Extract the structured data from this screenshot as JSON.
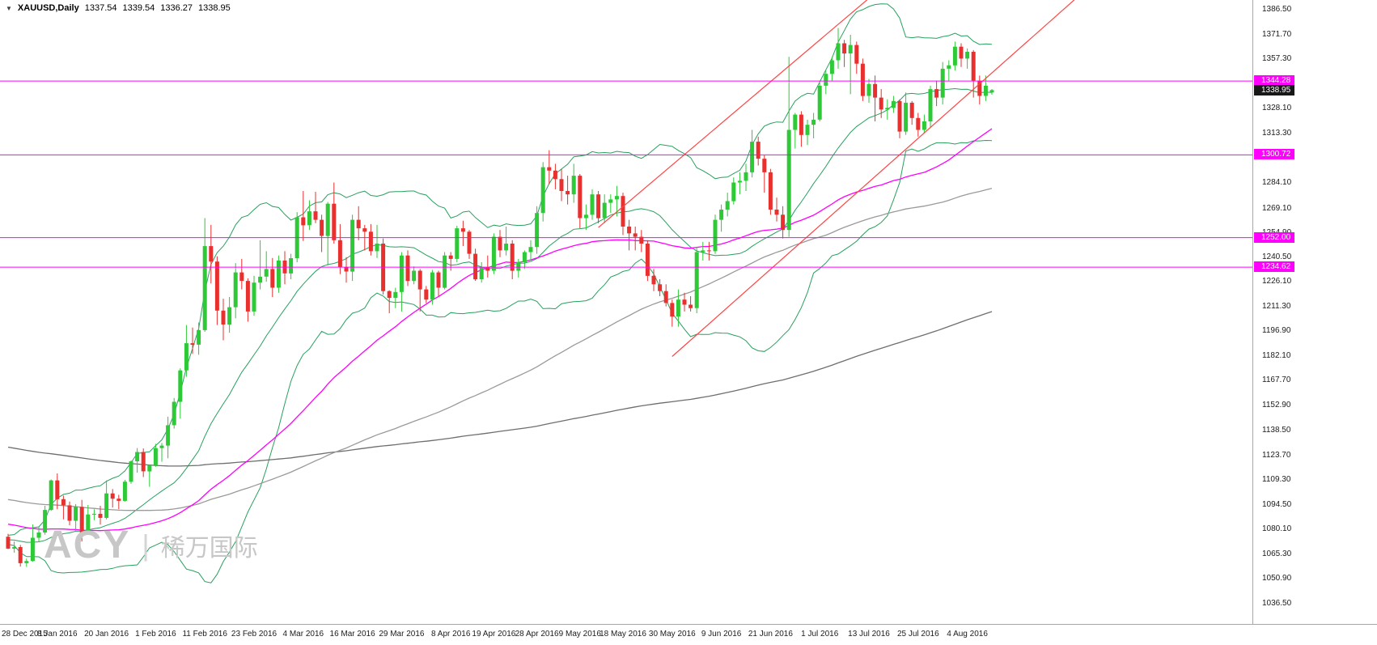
{
  "header": {
    "collapse_icon": "▼",
    "symbol": "XAUUSD,Daily",
    "open": "1337.54",
    "high": "1339.54",
    "low": "1336.27",
    "close": "1338.95"
  },
  "watermark": {
    "brand": "ACY",
    "separator": "|",
    "company_cn": "稀万国际"
  },
  "chart_data": {
    "type": "candlestick",
    "symbol": "XAUUSD",
    "timeframe": "Daily",
    "grid": false,
    "legend_position": "none",
    "ylim": [
      1024.4,
      1392.0
    ],
    "y_ticks": [
      "1386.50",
      "1371.70",
      "1357.30",
      "1328.10",
      "1313.30",
      "1284.10",
      "1269.10",
      "1254.90",
      "1240.50",
      "1226.10",
      "1211.30",
      "1196.90",
      "1182.10",
      "1167.70",
      "1152.90",
      "1138.50",
      "1123.70",
      "1109.30",
      "1094.50",
      "1080.10",
      "1065.30",
      "1050.90",
      "1036.50"
    ],
    "x_labels": [
      {
        "label": "28 Dec 2015",
        "bar": 0
      },
      {
        "label": "8 Jan 2016",
        "bar": 8
      },
      {
        "label": "20 Jan 2016",
        "bar": 16
      },
      {
        "label": "1 Feb 2016",
        "bar": 24
      },
      {
        "label": "11 Feb 2016",
        "bar": 32
      },
      {
        "label": "23 Feb 2016",
        "bar": 40
      },
      {
        "label": "4 Mar 2016",
        "bar": 48
      },
      {
        "label": "16 Mar 2016",
        "bar": 56
      },
      {
        "label": "29 Mar 2016",
        "bar": 64
      },
      {
        "label": "8 Apr 2016",
        "bar": 72
      },
      {
        "label": "19 Apr 2016",
        "bar": 79
      },
      {
        "label": "28 Apr 2016",
        "bar": 86
      },
      {
        "label": "9 May 2016",
        "bar": 93
      },
      {
        "label": "18 May 2016",
        "bar": 100
      },
      {
        "label": "30 May 2016",
        "bar": 108
      },
      {
        "label": "9 Jun 2016",
        "bar": 116
      },
      {
        "label": "21 Jun 2016",
        "bar": 124
      },
      {
        "label": "1 Jul 2016",
        "bar": 132
      },
      {
        "label": "13 Jul 2016",
        "bar": 140
      },
      {
        "label": "25 Jul 2016",
        "bar": 148
      },
      {
        "label": "4 Aug 2016",
        "bar": 156
      }
    ],
    "levels": [
      {
        "price": 1344.28,
        "label": "1344.28"
      },
      {
        "price": 1300.72,
        "label": "1300.72"
      },
      {
        "price": 1252.0,
        "label": "1252.00"
      },
      {
        "price": 1234.62,
        "label": "1234.62"
      }
    ],
    "current_price": {
      "price": 1338.95,
      "label": "1338.95"
    },
    "trend_lines": [
      {
        "x1_bar": 108,
        "y1_price": 1182,
        "x2_bar": 174,
        "y2_price": 1394
      },
      {
        "x1_bar": 96,
        "y1_price": 1258,
        "x2_bar": 140,
        "y2_price": 1393
      }
    ],
    "indicators": [
      {
        "name": "Bollinger Bands",
        "period": 20,
        "deviation": 2
      },
      {
        "name": "SMA",
        "period": 50
      },
      {
        "name": "SMA",
        "period": 100
      },
      {
        "name": "SMA",
        "period": 200
      }
    ],
    "colors": {
      "up": "#2dc937",
      "down": "#e8312f",
      "bollinger": "#27a05d",
      "ma50": "#ff00ff",
      "ma100": "#9a9a9a",
      "ma200": "#6e6e6e",
      "trend": "#ff4444",
      "level": "#ff00ff"
    },
    "candles": [
      [
        "2015-12-28",
        1075.8,
        1077.5,
        1068.5,
        1068.8
      ],
      [
        "2015-12-29",
        1068.8,
        1073.0,
        1066.4,
        1069.7
      ],
      [
        "2015-12-30",
        1069.7,
        1071.0,
        1058.2,
        1060.2
      ],
      [
        "2015-12-31",
        1060.2,
        1062.9,
        1058.0,
        1061.5
      ],
      [
        "2016-01-04",
        1061.5,
        1083.0,
        1061.0,
        1075.2
      ],
      [
        "2016-01-05",
        1075.2,
        1081.5,
        1073.0,
        1078.3
      ],
      [
        "2016-01-06",
        1078.3,
        1094.0,
        1077.0,
        1091.6
      ],
      [
        "2016-01-07",
        1091.6,
        1109.5,
        1091.0,
        1109.0
      ],
      [
        "2016-01-08",
        1109.0,
        1113.1,
        1092.0,
        1097.9
      ],
      [
        "2016-01-11",
        1097.9,
        1100.0,
        1086.0,
        1094.3
      ],
      [
        "2016-01-12",
        1094.3,
        1096.5,
        1082.5,
        1085.2
      ],
      [
        "2016-01-13",
        1085.2,
        1095.0,
        1079.0,
        1093.4
      ],
      [
        "2016-01-14",
        1093.4,
        1097.5,
        1073.0,
        1077.6
      ],
      [
        "2016-01-15",
        1077.6,
        1094.5,
        1077.0,
        1088.9
      ],
      [
        "2016-01-18",
        1088.9,
        1092.0,
        1085.5,
        1089.3
      ],
      [
        "2016-01-19",
        1089.3,
        1094.0,
        1082.9,
        1086.9
      ],
      [
        "2016-01-20",
        1086.9,
        1109.0,
        1086.0,
        1101.3
      ],
      [
        "2016-01-21",
        1101.3,
        1103.9,
        1093.0,
        1098.2
      ],
      [
        "2016-01-22",
        1098.2,
        1100.5,
        1092.0,
        1096.9
      ],
      [
        "2016-01-25",
        1096.9,
        1109.3,
        1096.5,
        1108.2
      ],
      [
        "2016-01-26",
        1108.2,
        1120.6,
        1107.0,
        1120.2
      ],
      [
        "2016-01-27",
        1120.2,
        1128.0,
        1113.5,
        1125.7
      ],
      [
        "2016-01-28",
        1125.7,
        1127.8,
        1111.0,
        1114.3
      ],
      [
        "2016-01-29",
        1114.3,
        1118.2,
        1105.2,
        1118.0
      ],
      [
        "2016-02-01",
        1118.0,
        1130.5,
        1117.0,
        1128.0
      ],
      [
        "2016-02-02",
        1128.0,
        1131.0,
        1120.0,
        1129.5
      ],
      [
        "2016-02-03",
        1129.5,
        1146.5,
        1122.0,
        1141.5
      ],
      [
        "2016-02-04",
        1141.5,
        1157.5,
        1139.5,
        1155.3
      ],
      [
        "2016-02-05",
        1155.3,
        1175.0,
        1145.5,
        1173.8
      ],
      [
        "2016-02-08",
        1173.8,
        1200.5,
        1170.0,
        1189.8
      ],
      [
        "2016-02-09",
        1189.8,
        1199.0,
        1183.5,
        1188.9
      ],
      [
        "2016-02-10",
        1188.9,
        1202.0,
        1183.0,
        1197.5
      ],
      [
        "2016-02-11",
        1197.5,
        1263.5,
        1196.5,
        1247.0
      ],
      [
        "2016-02-12",
        1247.0,
        1259.5,
        1225.0,
        1237.9
      ],
      [
        "2016-02-15",
        1237.9,
        1241.0,
        1200.5,
        1209.0
      ],
      [
        "2016-02-16",
        1209.0,
        1216.0,
        1191.5,
        1200.8
      ],
      [
        "2016-02-17",
        1200.8,
        1217.0,
        1196.0,
        1211.0
      ],
      [
        "2016-02-18",
        1211.0,
        1237.0,
        1204.5,
        1231.5
      ],
      [
        "2016-02-19",
        1231.5,
        1239.5,
        1221.5,
        1226.5
      ],
      [
        "2016-02-22",
        1226.5,
        1228.0,
        1202.5,
        1208.5
      ],
      [
        "2016-02-23",
        1208.5,
        1229.5,
        1206.0,
        1225.5
      ],
      [
        "2016-02-24",
        1225.5,
        1250.5,
        1221.5,
        1229.0
      ],
      [
        "2016-02-25",
        1229.0,
        1244.0,
        1226.0,
        1233.5
      ],
      [
        "2016-02-26",
        1233.5,
        1240.0,
        1217.0,
        1222.5
      ],
      [
        "2016-02-29",
        1222.5,
        1241.5,
        1219.5,
        1238.5
      ],
      [
        "2016-03-01",
        1238.5,
        1244.0,
        1224.5,
        1230.9
      ],
      [
        "2016-03-02",
        1230.9,
        1242.5,
        1227.5,
        1239.9
      ],
      [
        "2016-03-03",
        1239.9,
        1267.0,
        1237.5,
        1264.0
      ],
      [
        "2016-03-04",
        1264.0,
        1279.5,
        1250.0,
        1259.3
      ],
      [
        "2016-03-07",
        1259.3,
        1274.0,
        1256.5,
        1267.5
      ],
      [
        "2016-03-08",
        1267.5,
        1279.0,
        1260.5,
        1262.5
      ],
      [
        "2016-03-09",
        1262.5,
        1265.5,
        1243.5,
        1253.0
      ],
      [
        "2016-03-10",
        1253.0,
        1273.0,
        1235.5,
        1272.0
      ],
      [
        "2016-03-11",
        1272.0,
        1284.5,
        1248.5,
        1250.5
      ],
      [
        "2016-03-14",
        1250.5,
        1260.0,
        1230.5,
        1234.5
      ],
      [
        "2016-03-15",
        1234.5,
        1240.5,
        1225.5,
        1232.0
      ],
      [
        "2016-03-16",
        1232.0,
        1265.5,
        1226.5,
        1262.5
      ],
      [
        "2016-03-17",
        1262.5,
        1270.5,
        1250.5,
        1257.5
      ],
      [
        "2016-03-18",
        1257.5,
        1259.5,
        1244.5,
        1255.5
      ],
      [
        "2016-03-21",
        1255.5,
        1260.0,
        1241.5,
        1244.0
      ],
      [
        "2016-03-22",
        1244.0,
        1259.5,
        1240.0,
        1248.5
      ],
      [
        "2016-03-23",
        1248.5,
        1251.5,
        1218.5,
        1220.5
      ],
      [
        "2016-03-24",
        1220.5,
        1221.0,
        1207.5,
        1216.5
      ],
      [
        "2016-03-28",
        1216.5,
        1222.5,
        1210.5,
        1220.0
      ],
      [
        "2016-03-29",
        1220.0,
        1243.5,
        1208.5,
        1241.5
      ],
      [
        "2016-03-30",
        1241.5,
        1244.5,
        1223.5,
        1226.5
      ],
      [
        "2016-03-31",
        1226.5,
        1235.0,
        1224.5,
        1232.5
      ],
      [
        "2016-04-01",
        1232.5,
        1233.5,
        1208.5,
        1221.5
      ],
      [
        "2016-04-04",
        1221.5,
        1223.5,
        1213.5,
        1215.5
      ],
      [
        "2016-04-05",
        1215.5,
        1233.0,
        1212.5,
        1231.5
      ],
      [
        "2016-04-06",
        1231.5,
        1232.5,
        1217.5,
        1222.5
      ],
      [
        "2016-04-07",
        1222.5,
        1243.5,
        1221.5,
        1241.5
      ],
      [
        "2016-04-08",
        1241.5,
        1243.5,
        1232.5,
        1239.5
      ],
      [
        "2016-04-11",
        1239.5,
        1259.0,
        1237.5,
        1257.5
      ],
      [
        "2016-04-12",
        1257.5,
        1262.0,
        1247.0,
        1255.5
      ],
      [
        "2016-04-13",
        1255.5,
        1256.5,
        1239.5,
        1242.5
      ],
      [
        "2016-04-14",
        1242.5,
        1245.5,
        1226.5,
        1227.5
      ],
      [
        "2016-04-15",
        1227.5,
        1237.5,
        1225.5,
        1234.5
      ],
      [
        "2016-04-18",
        1234.5,
        1241.5,
        1228.5,
        1232.5
      ],
      [
        "2016-04-19",
        1232.5,
        1254.5,
        1230.5,
        1252.5
      ],
      [
        "2016-04-20",
        1252.5,
        1256.5,
        1240.5,
        1244.5
      ],
      [
        "2016-04-21",
        1244.5,
        1258.5,
        1241.5,
        1248.5
      ],
      [
        "2016-04-22",
        1248.5,
        1250.5,
        1227.5,
        1232.5
      ],
      [
        "2016-04-25",
        1232.5,
        1239.5,
        1228.5,
        1237.5
      ],
      [
        "2016-04-26",
        1237.5,
        1244.5,
        1233.5,
        1243.5
      ],
      [
        "2016-04-27",
        1243.5,
        1250.5,
        1238.5,
        1246.5
      ],
      [
        "2016-04-28",
        1246.5,
        1270.5,
        1242.5,
        1266.5
      ],
      [
        "2016-04-29",
        1266.5,
        1296.5,
        1261.5,
        1293.5
      ],
      [
        "2016-05-02",
        1293.5,
        1303.5,
        1283.5,
        1291.5
      ],
      [
        "2016-05-03",
        1291.5,
        1295.5,
        1280.5,
        1286.5
      ],
      [
        "2016-05-04",
        1286.5,
        1292.5,
        1273.5,
        1279.5
      ],
      [
        "2016-05-05",
        1279.5,
        1288.5,
        1271.5,
        1277.5
      ],
      [
        "2016-05-06",
        1277.5,
        1295.5,
        1272.5,
        1288.5
      ],
      [
        "2016-05-09",
        1288.5,
        1289.5,
        1257.5,
        1263.5
      ],
      [
        "2016-05-10",
        1263.5,
        1271.5,
        1256.5,
        1265.5
      ],
      [
        "2016-05-11",
        1265.5,
        1280.5,
        1262.5,
        1277.5
      ],
      [
        "2016-05-12",
        1277.5,
        1279.5,
        1260.5,
        1263.5
      ],
      [
        "2016-05-13",
        1263.5,
        1277.5,
        1260.5,
        1272.5
      ],
      [
        "2016-05-16",
        1272.5,
        1277.5,
        1266.5,
        1274.5
      ],
      [
        "2016-05-17",
        1274.5,
        1282.5,
        1264.5,
        1276.5
      ],
      [
        "2016-05-18",
        1276.5,
        1278.5,
        1253.5,
        1258.5
      ],
      [
        "2016-05-19",
        1258.5,
        1262.5,
        1244.5,
        1254.5
      ],
      [
        "2016-05-20",
        1254.5,
        1258.5,
        1244.5,
        1252.5
      ],
      [
        "2016-05-23",
        1252.5,
        1256.5,
        1243.5,
        1248.5
      ],
      [
        "2016-05-24",
        1248.5,
        1250.5,
        1226.5,
        1229.5
      ],
      [
        "2016-05-25",
        1229.5,
        1233.5,
        1220.5,
        1224.5
      ],
      [
        "2016-05-26",
        1224.5,
        1227.5,
        1217.5,
        1220.5
      ],
      [
        "2016-05-27",
        1220.5,
        1224.5,
        1211.5,
        1213.5
      ],
      [
        "2016-05-30",
        1213.5,
        1215.5,
        1199.5,
        1205.5
      ],
      [
        "2016-05-31",
        1205.5,
        1221.5,
        1199.5,
        1215.5
      ],
      [
        "2016-06-01",
        1215.5,
        1219.5,
        1208.5,
        1212.5
      ],
      [
        "2016-06-02",
        1212.5,
        1217.5,
        1208.5,
        1210.5
      ],
      [
        "2016-06-03",
        1210.5,
        1246.5,
        1207.5,
        1243.5
      ],
      [
        "2016-06-06",
        1243.5,
        1249.5,
        1238.5,
        1244.5
      ],
      [
        "2016-06-07",
        1244.5,
        1249.5,
        1238.5,
        1244.0
      ],
      [
        "2016-06-08",
        1244.0,
        1265.5,
        1242.5,
        1262.5
      ],
      [
        "2016-06-09",
        1262.5,
        1271.5,
        1255.5,
        1268.5
      ],
      [
        "2016-06-10",
        1268.5,
        1278.5,
        1264.5,
        1273.5
      ],
      [
        "2016-06-13",
        1273.5,
        1287.5,
        1271.5,
        1284.5
      ],
      [
        "2016-06-14",
        1284.5,
        1290.5,
        1277.5,
        1285.5
      ],
      [
        "2016-06-15",
        1285.5,
        1295.5,
        1279.5,
        1290.5
      ],
      [
        "2016-06-16",
        1290.5,
        1315.5,
        1287.5,
        1308.5
      ],
      [
        "2016-06-17",
        1308.5,
        1311.5,
        1294.5,
        1298.5
      ],
      [
        "2016-06-20",
        1298.5,
        1300.5,
        1278.5,
        1290.5
      ],
      [
        "2016-06-21",
        1290.5,
        1292.5,
        1265.5,
        1268.5
      ],
      [
        "2016-06-22",
        1268.5,
        1275.5,
        1261.5,
        1265.5
      ],
      [
        "2016-06-23",
        1265.5,
        1270.5,
        1251.5,
        1256.5
      ],
      [
        "2016-06-24",
        1256.5,
        1358.5,
        1252.5,
        1315.5
      ],
      [
        "2016-06-27",
        1315.5,
        1325.5,
        1304.5,
        1324.5
      ],
      [
        "2016-06-28",
        1324.5,
        1326.5,
        1305.5,
        1312.5
      ],
      [
        "2016-06-29",
        1312.5,
        1321.5,
        1306.5,
        1318.5
      ],
      [
        "2016-06-30",
        1318.5,
        1325.5,
        1310.5,
        1321.5
      ],
      [
        "2016-07-01",
        1321.5,
        1344.5,
        1320.5,
        1341.5
      ],
      [
        "2016-07-04",
        1341.5,
        1350.5,
        1336.5,
        1348.5
      ],
      [
        "2016-07-05",
        1348.5,
        1358.5,
        1344.5,
        1356.5
      ],
      [
        "2016-07-06",
        1356.5,
        1375.5,
        1351.5,
        1366.5
      ],
      [
        "2016-07-07",
        1366.5,
        1368.5,
        1352.5,
        1360.5
      ],
      [
        "2016-07-08",
        1360.5,
        1371.5,
        1336.5,
        1365.5
      ],
      [
        "2016-07-11",
        1365.5,
        1367.5,
        1348.5,
        1354.5
      ],
      [
        "2016-07-12",
        1354.5,
        1357.5,
        1332.5,
        1335.5
      ],
      [
        "2016-07-13",
        1335.5,
        1345.5,
        1331.5,
        1342.5
      ],
      [
        "2016-07-14",
        1342.5,
        1347.5,
        1320.5,
        1334.5
      ],
      [
        "2016-07-15",
        1334.5,
        1339.5,
        1322.5,
        1327.5
      ],
      [
        "2016-07-18",
        1327.5,
        1333.5,
        1321.5,
        1328.5
      ],
      [
        "2016-07-19",
        1328.5,
        1335.5,
        1325.5,
        1332.5
      ],
      [
        "2016-07-20",
        1332.5,
        1333.5,
        1310.5,
        1314.5
      ],
      [
        "2016-07-21",
        1314.5,
        1337.5,
        1312.5,
        1331.5
      ],
      [
        "2016-07-22",
        1331.5,
        1332.5,
        1318.5,
        1322.5
      ],
      [
        "2016-07-25",
        1322.5,
        1325.5,
        1311.5,
        1315.5
      ],
      [
        "2016-07-26",
        1315.5,
        1324.5,
        1313.5,
        1320.5
      ],
      [
        "2016-07-27",
        1320.5,
        1341.5,
        1316.5,
        1339.5
      ],
      [
        "2016-07-28",
        1339.5,
        1344.5,
        1329.5,
        1334.5
      ],
      [
        "2016-07-29",
        1334.5,
        1355.5,
        1330.5,
        1351.5
      ],
      [
        "2016-08-01",
        1351.5,
        1356.5,
        1344.5,
        1353.5
      ],
      [
        "2016-08-02",
        1353.5,
        1367.5,
        1350.5,
        1364.5
      ],
      [
        "2016-08-03",
        1364.5,
        1366.5,
        1352.5,
        1357.5
      ],
      [
        "2016-08-04",
        1357.5,
        1363.5,
        1351.5,
        1361.5
      ],
      [
        "2016-08-05",
        1361.5,
        1362.5,
        1334.5,
        1344.5
      ],
      [
        "2016-08-08",
        1344.5,
        1347.5,
        1330.5,
        1335.5
      ],
      [
        "2016-08-09",
        1335.5,
        1347.5,
        1332.5,
        1341.5
      ],
      [
        "2016-08-10",
        1337.54,
        1339.54,
        1336.27,
        1338.95
      ]
    ]
  }
}
